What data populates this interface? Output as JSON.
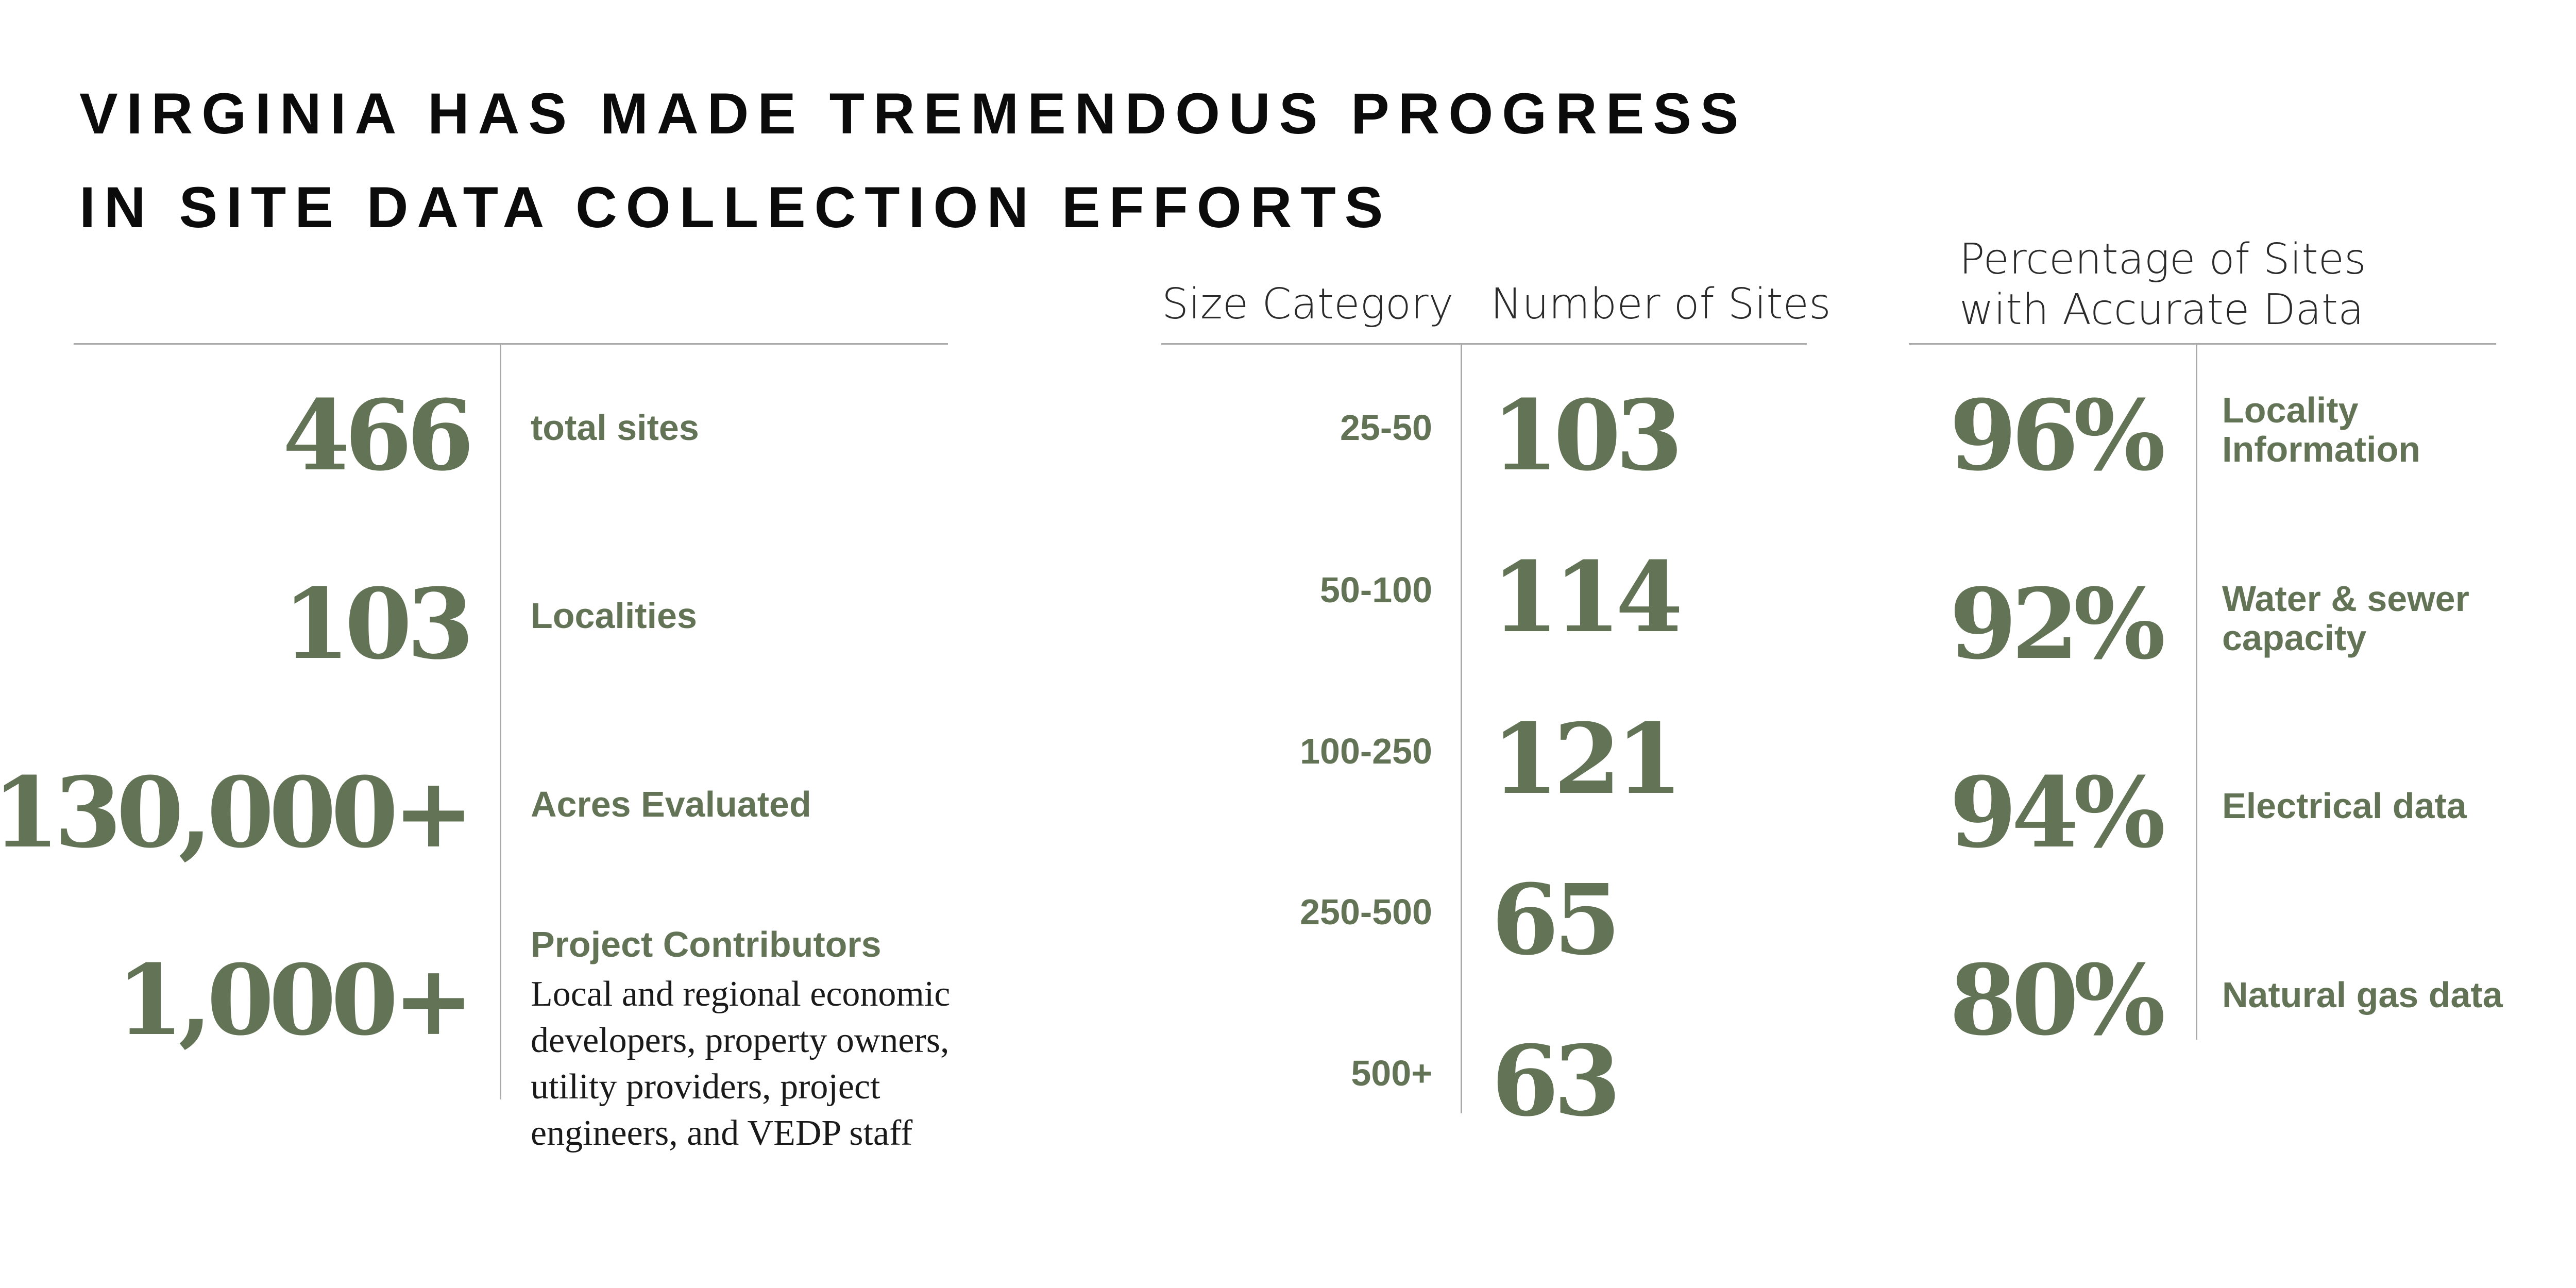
{
  "title": {
    "line1": "VIRGINIA HAS MADE TREMENDOUS PROGRESS",
    "line2": "IN SITE DATA COLLECTION EFFORTS"
  },
  "summary_stats": [
    {
      "value": "466",
      "label": "total sites"
    },
    {
      "value": "103",
      "label": "Localities"
    },
    {
      "value": "130,000+",
      "label": "Acres Evaluated"
    },
    {
      "value": "1,000+",
      "label": "Project Contributors"
    }
  ],
  "contributors_description": [
    "Local and regional economic",
    "developers, property owners,",
    "utility providers, project",
    "engineers, and VEDP staff"
  ],
  "size_table": {
    "headers": {
      "size": "Size Category",
      "count": "Number of Sites"
    },
    "rows": [
      {
        "size": "25-50",
        "count": "103"
      },
      {
        "size": "50-100",
        "count": "114"
      },
      {
        "size": "100-250",
        "count": "121"
      },
      {
        "size": "250-500",
        "count": "65"
      },
      {
        "size": "500+",
        "count": "63"
      }
    ]
  },
  "accuracy": {
    "header": [
      "Percentage of Sites",
      "with Accurate Data"
    ],
    "rows": [
      {
        "value": "96%",
        "label": [
          "Locality",
          "Information"
        ]
      },
      {
        "value": "92%",
        "label": [
          "Water & sewer",
          "capacity"
        ]
      },
      {
        "value": "94%",
        "label": [
          "Electrical data"
        ]
      },
      {
        "value": "80%",
        "label": [
          "Natural gas data"
        ]
      }
    ]
  },
  "colors": {
    "accent": "#637356",
    "rule": "#a9a9a9",
    "title": "#0b0b0b"
  }
}
